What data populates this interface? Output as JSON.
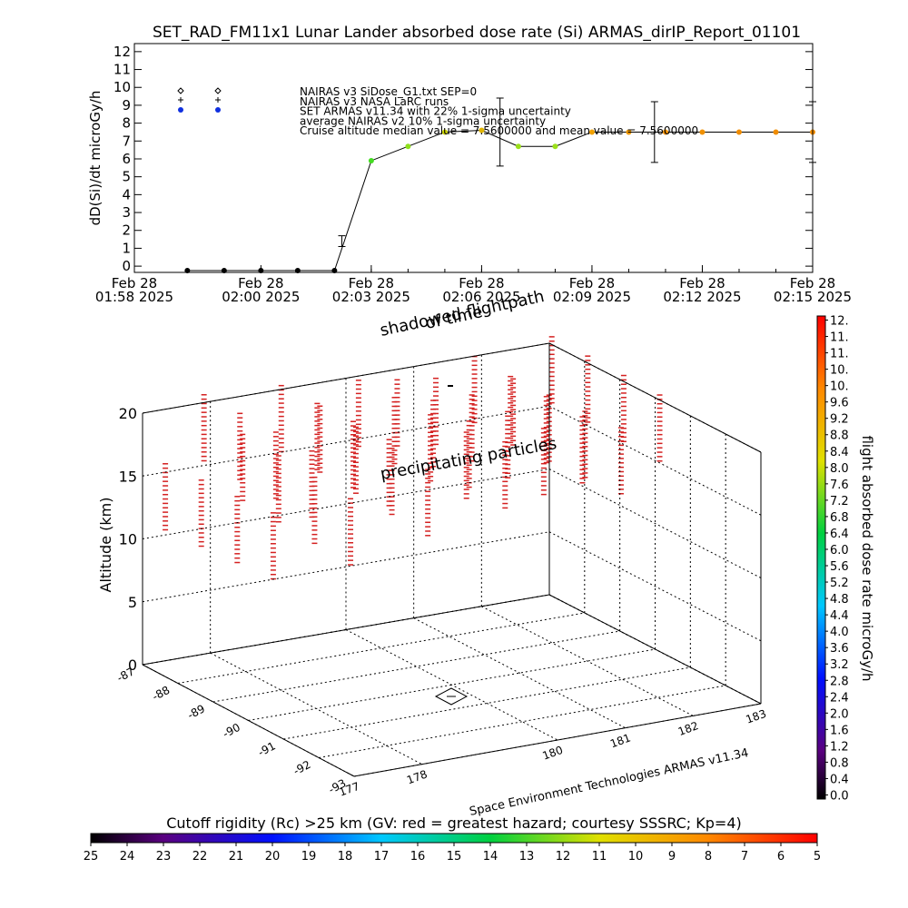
{
  "chart_data": [
    {
      "type": "line",
      "title": "SET_RAD_FM11x1  Lunar Lander absorbed dose rate (Si) ARMAS_dirIP_Report_01101",
      "y_label": "dD(Si)/dt microGy/h",
      "x": [
        0,
        1,
        2,
        3,
        4,
        5,
        6,
        7,
        8,
        9,
        10,
        11,
        12,
        13,
        14,
        15,
        16,
        17
      ],
      "values": [
        -0.25,
        -0.25,
        -0.25,
        -0.25,
        -0.25,
        5.9,
        6.7,
        7.5,
        7.6,
        6.7,
        6.7,
        7.5,
        7.5,
        7.5,
        7.5,
        7.5,
        7.5,
        7.5
      ],
      "colors": [
        "#000000",
        "#000000",
        "#000000",
        "#000000",
        "#000000",
        "#44dd22",
        "#8ee01c",
        "#c8d000",
        "#e0b400",
        "#9be01a",
        "#9be01a",
        "#f0a000",
        "#f09800",
        "#f09000",
        "#f09000",
        "#f08c00",
        "#f08c00",
        "#f08c00"
      ],
      "error_bars": {
        "x": [
          4.2,
          8.5,
          12.7,
          17
        ],
        "values": [
          1.4,
          7.5,
          7.5,
          7.5
        ],
        "errors": [
          0.3,
          1.9,
          1.7,
          1.7
        ]
      },
      "legend": [
        "NAIRAS v3 SiDose_G1.txt SEP=0",
        "NAIRAS v3 NASA LaRC runs",
        "SET ARMAS v11.34 with 22% 1-sigma uncertainty",
        "average NAIRAS v2 10% 1-sigma uncertainty",
        "Cruise altitude median value = 7.5600000 and mean value = 7.5600000"
      ],
      "xlim": [
        -1.44,
        17
      ],
      "xticks": [
        {
          "value": -1.44,
          "label": "Feb 28\n01:58 2025"
        },
        {
          "value": 2,
          "label": "Feb 28\n02:00 2025"
        },
        {
          "value": 5,
          "label": "Feb 28\n02:03 2025"
        },
        {
          "value": 8,
          "label": "Feb 28\n02:06 2025"
        },
        {
          "value": 11,
          "label": "Feb 28\n02:09 2025"
        },
        {
          "value": 14,
          "label": "Feb 28\n02:12 2025"
        },
        {
          "value": 17,
          "label": "Feb 28\n02:15 2025"
        }
      ],
      "ylim": [
        -0.35,
        12.45
      ],
      "yticks": [
        0,
        1,
        2,
        3,
        4,
        5,
        6,
        7,
        8,
        9,
        10,
        11,
        12
      ]
    },
    {
      "type": "scatter3d",
      "annotations": [
        "shadowed flightpath",
        "of time",
        "precipitating particles",
        "Space Environment Technologies ARMAS v11.34"
      ],
      "z_label": "Altitude (km)",
      "zlim": [
        0,
        20
      ],
      "zticks": [
        0,
        5,
        10,
        15,
        20
      ],
      "xlim": [
        177,
        183
      ],
      "xticks": [
        177,
        178,
        180,
        181,
        182,
        183
      ],
      "ylim": [
        -87,
        -93
      ],
      "yticks": [
        -87,
        -88,
        -89,
        -90,
        -91,
        -92,
        -93
      ]
    },
    {
      "type": "colorbar",
      "label": "flight absorbed dose rate microGy/h",
      "clim": [
        -0.1,
        11.7
      ],
      "ticks": [
        {
          "value": 11.6,
          "label": "12."
        },
        {
          "value": 11.2,
          "label": "11."
        },
        {
          "value": 10.8,
          "label": "11."
        },
        {
          "value": 10.4,
          "label": "10."
        },
        {
          "value": 10.0,
          "label": "10."
        },
        {
          "value": 9.6,
          "label": "9.6"
        },
        {
          "value": 9.2,
          "label": "9.2"
        },
        {
          "value": 8.8,
          "label": "8.8"
        },
        {
          "value": 8.4,
          "label": "8.4"
        },
        {
          "value": 8.0,
          "label": "8.0"
        },
        {
          "value": 7.6,
          "label": "7.6"
        },
        {
          "value": 7.2,
          "label": "7.2"
        },
        {
          "value": 6.8,
          "label": "6.8"
        },
        {
          "value": 6.4,
          "label": "6.4"
        },
        {
          "value": 6.0,
          "label": "6.0"
        },
        {
          "value": 5.6,
          "label": "5.6"
        },
        {
          "value": 5.2,
          "label": "5.2"
        },
        {
          "value": 4.8,
          "label": "4.8"
        },
        {
          "value": 4.4,
          "label": "4.4"
        },
        {
          "value": 4.0,
          "label": "4.0"
        },
        {
          "value": 3.6,
          "label": "3.6"
        },
        {
          "value": 3.2,
          "label": "3.2"
        },
        {
          "value": 2.8,
          "label": "2.8"
        },
        {
          "value": 2.4,
          "label": "2.4"
        },
        {
          "value": 2.0,
          "label": "2.0"
        },
        {
          "value": 1.6,
          "label": "1.6"
        },
        {
          "value": 1.2,
          "label": "1.2"
        },
        {
          "value": 0.8,
          "label": "0.8"
        },
        {
          "value": 0.4,
          "label": "0.4"
        },
        {
          "value": 0.0,
          "label": "0.0"
        }
      ]
    },
    {
      "type": "colorbar",
      "title": "Cutoff rigidity (Rc) >25 km (GV: red = greatest hazard; courtesy SSSRC; Kp=4)",
      "xlim": [
        25,
        5
      ],
      "xticks": [
        25,
        24,
        23,
        22,
        21,
        20,
        19,
        18,
        17,
        16,
        15,
        14,
        13,
        12,
        11,
        10,
        9,
        8,
        7,
        6,
        5
      ]
    }
  ]
}
